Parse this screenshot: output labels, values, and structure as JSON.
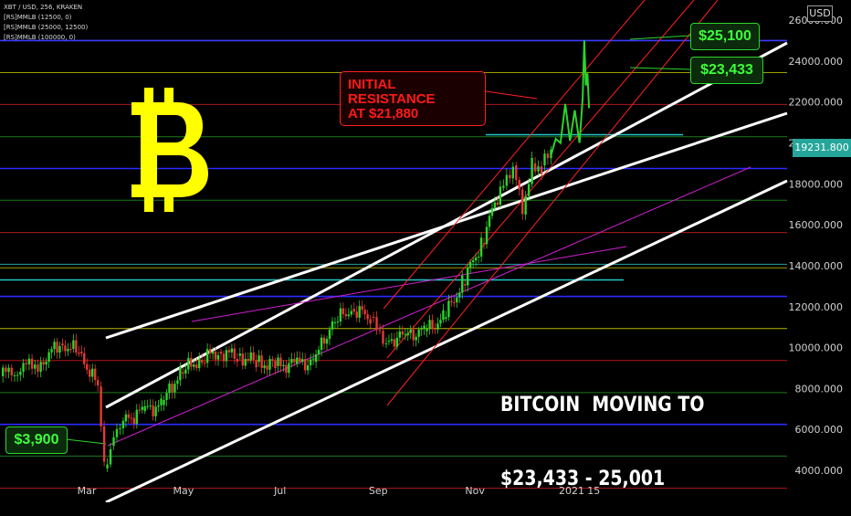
{
  "header": {
    "symbol_line": "XBT / USD, 256, KRAKEN",
    "indicator_1": "[RS]MMLB (12500, 0)",
    "indicator_2": "[RS]MMLB (25000, 12500)",
    "indicator_3": "[RS]MMLB (100000, 0)"
  },
  "currency_button": "USD",
  "last_price_tag": "19231.800",
  "annotations": {
    "high_label": "$25,100",
    "target_label": "$23,433",
    "low_label": "$3,900",
    "resistance_label_line1": "INITIAL",
    "resistance_label_line2": "RESISTANCE",
    "resistance_label_line3": "AT $21,880",
    "headline_line1": "BITCOIN  MOVING TO",
    "headline_line2": "$23,433 - 25,001"
  },
  "logo": {
    "name": "bitcoin-logo-icon",
    "color": "#ffff00"
  },
  "colors": {
    "up": "#26a69a",
    "down": "#ef5350",
    "candle_up": "#2bd52b",
    "candle_down": "#e53935",
    "accent_green": "#3cff3c",
    "accent_red": "#ff1a1a"
  },
  "chart_data": {
    "type": "line",
    "title": "",
    "xlabel": "",
    "ylabel": "",
    "ylim": [
      2500,
      26500
    ],
    "x_ticks": [
      "Mar",
      "May",
      "Jul",
      "Sep",
      "Nov",
      "2021",
      "15"
    ],
    "y_ticks": [
      "26000.000",
      "24000.000",
      "22000.000",
      "20000.000",
      "18000.000",
      "16000.000",
      "14000.000",
      "12000.000",
      "10000.000",
      "8000.000",
      "6000.000",
      "4000.000"
    ],
    "y_tick_values": [
      26000,
      24000,
      22000,
      20000,
      18000,
      16000,
      14000,
      12000,
      10000,
      8000,
      6000,
      4000
    ],
    "horizontal_levels": [
      {
        "value": 25000,
        "color": "#3b3bff"
      },
      {
        "value": 23433,
        "color": "#9aa000"
      },
      {
        "value": 21880,
        "color": "#b01818"
      },
      {
        "value": 20300,
        "color": "#1e7a1e"
      },
      {
        "value": 18750,
        "color": "#2a2aff"
      },
      {
        "value": 17200,
        "color": "#1e7a1e"
      },
      {
        "value": 15620,
        "color": "#b01818"
      },
      {
        "value": 14070,
        "color": "#22a0a0"
      },
      {
        "value": 13900,
        "color": "#9aa000"
      },
      {
        "value": 12500,
        "color": "#2a2aff"
      },
      {
        "value": 10930,
        "color": "#b8b800"
      },
      {
        "value": 9370,
        "color": "#b01818"
      },
      {
        "value": 7800,
        "color": "#1e7a1e"
      },
      {
        "value": 6250,
        "color": "#2a2aff"
      },
      {
        "value": 4700,
        "color": "#1e7a1e"
      },
      {
        "value": 3125,
        "color": "#b01818"
      }
    ],
    "series": [
      {
        "x": [
          "Jan 20",
          "Feb 01",
          "Feb 13",
          "Feb 25",
          "Mar 08",
          "Mar 12",
          "Mar 16",
          "Mar 24",
          "Apr 05",
          "Apr 17",
          "Apr 29",
          "May 11",
          "May 23",
          "Jun 04",
          "Jun 16",
          "Jun 28",
          "Jul 10",
          "Jul 22",
          "Aug 03",
          "Aug 15",
          "Aug 27",
          "Sep 06",
          "Sep 18",
          "Sep 30",
          "Oct 12",
          "Oct 24",
          "Nov 05",
          "Nov 17",
          "Nov 25",
          "Dec 01",
          "Dec 07",
          "Dec 13",
          "Dec 19"
        ],
        "values": [
          8600,
          9300,
          10200,
          9800,
          8100,
          4100,
          5200,
          6400,
          6900,
          7200,
          8800,
          9400,
          9800,
          9600,
          9300,
          9100,
          9200,
          9300,
          11200,
          11900,
          11500,
          10300,
          10600,
          10800,
          11400,
          13100,
          15100,
          17800,
          18900,
          16500,
          19000,
          18900,
          19400
        ]
      },
      {
        "x": [
          "Dec 19",
          "Dec 22",
          "Dec 25",
          "Dec 28",
          "Dec 31",
          "Jan 03",
          "Jan 06",
          "Jan 08",
          "Jan 09",
          "Jan 10",
          "Jan 11",
          "Jan 12"
        ],
        "values": [
          19400,
          20200,
          20000,
          21900,
          20100,
          21600,
          20000,
          22200,
          25000,
          22800,
          23400,
          21700
        ]
      }
    ],
    "channels": [
      {
        "name": "",
        "color": "#ffffff",
        "from": [
          "Mar 12",
          5900
        ],
        "to": [
          "Jan 31",
          25000
        ]
      },
      {
        "name": "",
        "color": "#ffffff",
        "from": [
          "Mar 20",
          9500
        ],
        "to": [
          "Jan 31",
          21300
        ]
      },
      {
        "name": "",
        "color": "#ffffff",
        "from": [
          "Mar 16",
          2400
        ],
        "to": [
          "Jan 31",
          17500
        ]
      }
    ],
    "annotations": [
      {
        "label": "$25,100",
        "value": 25100
      },
      {
        "label": "$23,433",
        "value": 23433
      },
      {
        "label": "INITIAL RESISTANCE AT $21,880",
        "value": 21880
      },
      {
        "label": "$3,900",
        "value": 3900
      }
    ]
  }
}
